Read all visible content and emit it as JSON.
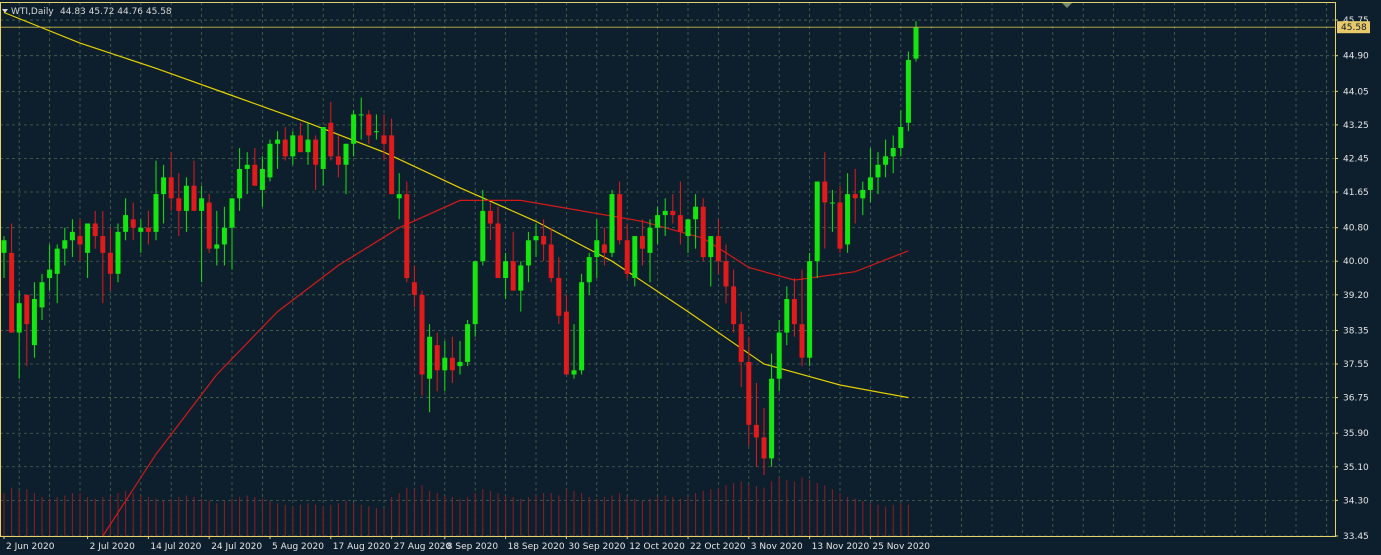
{
  "header": {
    "symbol": "WTI,Daily",
    "ohlc": "44.83 45.72 44.76 45.58"
  },
  "current_price_label": "45.58",
  "colors": {
    "background": "#0d1e2d",
    "frame": "#e8d36a",
    "grid": "#4a6650",
    "bull": "#14e60f",
    "bear": "#e11b1b",
    "volume": "#8d1f26",
    "slow_ma": "#e4d000",
    "fast_ma": "#d21a1a",
    "price_line": "#c9b84a",
    "price_tag": "#e7c96a"
  },
  "chart_data": {
    "type": "candlestick",
    "symbol": "WTI",
    "timeframe": "Daily",
    "ylim": [
      33.45,
      46.18
    ],
    "y_ticks": [
      "45.75",
      "44.90",
      "44.05",
      "43.25",
      "42.45",
      "41.65",
      "40.80",
      "40.00",
      "39.20",
      "38.35",
      "37.55",
      "36.75",
      "35.90",
      "35.10",
      "34.30",
      "33.45"
    ],
    "x_tick_labels": [
      {
        "label": "2 Jun 2020",
        "index": 0
      },
      {
        "label": "2 Jul 2020",
        "index": 11
      },
      {
        "label": "14 Jul 2020",
        "index": 19
      },
      {
        "label": "24 Jul 2020",
        "index": 27
      },
      {
        "label": "5 Aug 2020",
        "index": 35
      },
      {
        "label": "17 Aug 2020",
        "index": 43
      },
      {
        "label": "27 Aug 2020",
        "index": 51
      },
      {
        "label": "8 Sep 2020",
        "index": 58
      },
      {
        "label": "18 Sep 2020",
        "index": 66
      },
      {
        "label": "30 Sep 2020",
        "index": 74
      },
      {
        "label": "12 Oct 2020",
        "index": 82
      },
      {
        "label": "22 Oct 2020",
        "index": 90
      },
      {
        "label": "3 Nov 2020",
        "index": 98
      },
      {
        "label": "13 Nov 2020",
        "index": 106
      },
      {
        "label": "25 Nov 2020",
        "index": 114
      }
    ],
    "first_candle_index": 0,
    "candles": [
      [
        40.2,
        40.6,
        39.6,
        40.5
      ],
      [
        40.2,
        40.9,
        38.3,
        38.3
      ],
      [
        38.3,
        39.3,
        37.2,
        39.0
      ],
      [
        39.2,
        39.2,
        37.5,
        38.5
      ],
      [
        38.0,
        39.5,
        37.7,
        39.1
      ],
      [
        38.9,
        39.7,
        38.6,
        39.5
      ],
      [
        39.6,
        40.4,
        39.3,
        39.8
      ],
      [
        39.7,
        40.4,
        39.0,
        40.3
      ],
      [
        40.3,
        40.8,
        39.9,
        40.5
      ],
      [
        40.5,
        41.0,
        40.1,
        40.7
      ],
      [
        40.6,
        41.0,
        40.0,
        40.4
      ],
      [
        40.2,
        40.9,
        39.6,
        40.9
      ],
      [
        40.9,
        41.2,
        40.3,
        40.6
      ],
      [
        40.6,
        41.2,
        39.0,
        40.2
      ],
      [
        40.2,
        40.8,
        39.3,
        39.7
      ],
      [
        39.7,
        40.9,
        39.5,
        40.7
      ],
      [
        40.7,
        41.5,
        40.5,
        41.1
      ],
      [
        41.0,
        41.4,
        40.5,
        40.8
      ],
      [
        40.7,
        41.0,
        40.2,
        40.8
      ],
      [
        40.8,
        41.2,
        40.4,
        40.7
      ],
      [
        40.7,
        42.4,
        40.5,
        41.6
      ],
      [
        41.6,
        42.3,
        40.9,
        42.0
      ],
      [
        42.0,
        42.6,
        41.2,
        41.5
      ],
      [
        41.5,
        42.1,
        40.6,
        41.2
      ],
      [
        41.2,
        42.0,
        40.7,
        41.8
      ],
      [
        41.8,
        42.4,
        41.3,
        41.2
      ],
      [
        41.2,
        41.8,
        39.5,
        41.5
      ],
      [
        41.4,
        41.6,
        40.2,
        40.3
      ],
      [
        40.3,
        41.2,
        39.9,
        40.4
      ],
      [
        40.4,
        41.3,
        39.9,
        40.8
      ],
      [
        40.8,
        41.5,
        39.8,
        41.5
      ],
      [
        41.5,
        42.7,
        41.2,
        42.2
      ],
      [
        42.2,
        42.6,
        41.6,
        42.3
      ],
      [
        42.3,
        42.7,
        41.8,
        41.8
      ],
      [
        41.7,
        42.5,
        41.3,
        42.2
      ],
      [
        42.0,
        42.9,
        41.9,
        42.8
      ],
      [
        42.8,
        43.1,
        42.2,
        42.9
      ],
      [
        42.9,
        43.2,
        42.4,
        42.5
      ],
      [
        42.5,
        43.1,
        42.3,
        43.0
      ],
      [
        43.0,
        43.3,
        42.6,
        42.6
      ],
      [
        42.6,
        43.3,
        42.3,
        42.9
      ],
      [
        42.9,
        43.0,
        41.7,
        42.3
      ],
      [
        42.2,
        43.2,
        41.8,
        43.2
      ],
      [
        43.3,
        43.8,
        42.4,
        42.5
      ],
      [
        42.5,
        43.0,
        42.0,
        42.3
      ],
      [
        42.3,
        42.8,
        41.6,
        42.8
      ],
      [
        42.8,
        43.6,
        42.5,
        43.5
      ],
      [
        43.5,
        43.9,
        42.9,
        43.5
      ],
      [
        43.5,
        43.6,
        42.8,
        43.0
      ],
      [
        43.1,
        43.5,
        42.9,
        43.1
      ],
      [
        43.0,
        43.5,
        42.4,
        42.8
      ],
      [
        43.0,
        43.4,
        41.6,
        41.6
      ],
      [
        41.5,
        42.1,
        41.0,
        41.6
      ],
      [
        41.6,
        41.9,
        39.5,
        39.6
      ],
      [
        39.5,
        39.9,
        38.9,
        39.2
      ],
      [
        39.2,
        39.3,
        36.8,
        37.3
      ],
      [
        37.2,
        38.5,
        36.4,
        38.2
      ],
      [
        38.0,
        38.3,
        36.9,
        37.4
      ],
      [
        37.4,
        38.1,
        36.9,
        37.7
      ],
      [
        37.7,
        38.2,
        37.1,
        37.4
      ],
      [
        37.5,
        38.1,
        37.3,
        37.6
      ],
      [
        37.6,
        38.6,
        37.5,
        38.5
      ],
      [
        38.5,
        40.0,
        38.2,
        40.0
      ],
      [
        40.0,
        41.7,
        39.9,
        41.2
      ],
      [
        41.2,
        41.4,
        40.5,
        40.9
      ],
      [
        40.9,
        41.3,
        39.6,
        39.6
      ],
      [
        39.6,
        40.2,
        39.1,
        40.0
      ],
      [
        40.0,
        40.7,
        39.3,
        39.3
      ],
      [
        39.3,
        40.0,
        38.8,
        39.9
      ],
      [
        39.9,
        40.7,
        39.5,
        40.5
      ],
      [
        40.5,
        40.9,
        40.1,
        40.6
      ],
      [
        40.6,
        41.0,
        40.0,
        40.4
      ],
      [
        40.4,
        40.8,
        39.5,
        39.6
      ],
      [
        39.6,
        40.1,
        38.5,
        38.7
      ],
      [
        38.8,
        39.2,
        37.3,
        37.3
      ],
      [
        37.3,
        38.5,
        37.2,
        37.4
      ],
      [
        37.4,
        39.7,
        37.3,
        39.5
      ],
      [
        39.5,
        40.2,
        39.2,
        40.1
      ],
      [
        40.1,
        41.0,
        39.6,
        40.5
      ],
      [
        40.4,
        40.8,
        39.9,
        40.2
      ],
      [
        40.2,
        41.7,
        40.1,
        41.6
      ],
      [
        41.6,
        41.9,
        40.4,
        40.5
      ],
      [
        40.5,
        40.9,
        39.6,
        39.7
      ],
      [
        39.6,
        40.6,
        39.4,
        40.6
      ],
      [
        40.6,
        41.0,
        39.9,
        40.3
      ],
      [
        40.2,
        41.0,
        39.5,
        40.8
      ],
      [
        40.8,
        41.3,
        40.4,
        41.1
      ],
      [
        41.1,
        41.5,
        40.6,
        41.2
      ],
      [
        41.2,
        41.6,
        40.9,
        41.1
      ],
      [
        41.1,
        41.9,
        40.4,
        40.7
      ],
      [
        40.6,
        41.0,
        40.2,
        41.0
      ],
      [
        41.0,
        41.6,
        40.3,
        41.3
      ],
      [
        41.3,
        41.5,
        40.0,
        40.1
      ],
      [
        40.1,
        40.6,
        39.4,
        40.6
      ],
      [
        40.6,
        41.0,
        39.7,
        40.0
      ],
      [
        40.0,
        40.4,
        39.0,
        39.4
      ],
      [
        39.4,
        39.8,
        38.3,
        38.5
      ],
      [
        38.5,
        38.8,
        37.0,
        37.6
      ],
      [
        37.6,
        38.2,
        35.6,
        36.1
      ],
      [
        36.1,
        37.1,
        35.1,
        35.8
      ],
      [
        35.8,
        36.5,
        34.9,
        35.3
      ],
      [
        35.3,
        37.8,
        35.1,
        37.2
      ],
      [
        37.2,
        38.6,
        36.9,
        38.3
      ],
      [
        38.3,
        39.4,
        38.0,
        39.1
      ],
      [
        39.1,
        39.6,
        38.2,
        38.5
      ],
      [
        38.5,
        39.8,
        37.5,
        37.7
      ],
      [
        37.7,
        40.2,
        37.5,
        40.0
      ],
      [
        40.0,
        41.9,
        39.6,
        41.9
      ],
      [
        41.9,
        42.6,
        40.3,
        41.4
      ],
      [
        41.4,
        41.7,
        40.7,
        41.4
      ],
      [
        41.4,
        41.8,
        40.2,
        40.3
      ],
      [
        40.4,
        42.1,
        40.2,
        41.6
      ],
      [
        41.6,
        42.2,
        40.9,
        41.5
      ],
      [
        41.5,
        41.9,
        41.1,
        41.7
      ],
      [
        41.7,
        42.7,
        41.4,
        42.0
      ],
      [
        42.0,
        42.6,
        41.6,
        42.3
      ],
      [
        42.3,
        42.9,
        42.0,
        42.5
      ],
      [
        42.5,
        43.0,
        42.1,
        42.7
      ],
      [
        42.7,
        43.6,
        42.5,
        43.2
      ],
      [
        43.3,
        45.0,
        43.1,
        44.8
      ],
      [
        44.83,
        45.72,
        44.76,
        45.58
      ]
    ],
    "slow_ma": [
      {
        "i": 0,
        "v": 45.93
      },
      {
        "i": 10,
        "v": 45.2
      },
      {
        "i": 20,
        "v": 44.6
      },
      {
        "i": 30,
        "v": 43.95
      },
      {
        "i": 40,
        "v": 43.3
      },
      {
        "i": 50,
        "v": 42.6
      },
      {
        "i": 60,
        "v": 41.75
      },
      {
        "i": 70,
        "v": 40.95
      },
      {
        "i": 80,
        "v": 40.0
      },
      {
        "i": 90,
        "v": 38.8
      },
      {
        "i": 100,
        "v": 37.55
      },
      {
        "i": 110,
        "v": 37.05
      },
      {
        "i": 119,
        "v": 36.75
      }
    ],
    "fast_ma": [
      {
        "i": 13,
        "v": 33.45
      },
      {
        "i": 20,
        "v": 35.4
      },
      {
        "i": 28,
        "v": 37.3
      },
      {
        "i": 36,
        "v": 38.8
      },
      {
        "i": 44,
        "v": 39.9
      },
      {
        "i": 52,
        "v": 40.8
      },
      {
        "i": 60,
        "v": 41.45
      },
      {
        "i": 68,
        "v": 41.45
      },
      {
        "i": 76,
        "v": 41.2
      },
      {
        "i": 84,
        "v": 40.95
      },
      {
        "i": 92,
        "v": 40.55
      },
      {
        "i": 98,
        "v": 39.85
      },
      {
        "i": 104,
        "v": 39.55
      },
      {
        "i": 112,
        "v": 39.75
      },
      {
        "i": 119,
        "v": 40.25
      }
    ],
    "volume_relative": [
      0.55,
      0.62,
      0.58,
      0.6,
      0.55,
      0.5,
      0.48,
      0.5,
      0.52,
      0.55,
      0.55,
      0.5,
      0.48,
      0.5,
      0.52,
      0.55,
      0.58,
      0.55,
      0.52,
      0.5,
      0.48,
      0.45,
      0.48,
      0.5,
      0.52,
      0.5,
      0.48,
      0.45,
      0.42,
      0.45,
      0.48,
      0.5,
      0.52,
      0.5,
      0.48,
      0.45,
      0.42,
      0.4,
      0.38,
      0.4,
      0.42,
      0.4,
      0.38,
      0.4,
      0.42,
      0.45,
      0.42,
      0.4,
      0.38,
      0.36,
      0.35,
      0.5,
      0.55,
      0.62,
      0.6,
      0.65,
      0.58,
      0.55,
      0.52,
      0.5,
      0.48,
      0.5,
      0.55,
      0.6,
      0.58,
      0.55,
      0.52,
      0.5,
      0.48,
      0.5,
      0.52,
      0.55,
      0.55,
      0.52,
      0.6,
      0.58,
      0.55,
      0.5,
      0.48,
      0.5,
      0.52,
      0.55,
      0.5,
      0.48,
      0.45,
      0.48,
      0.5,
      0.52,
      0.5,
      0.48,
      0.5,
      0.55,
      0.58,
      0.6,
      0.62,
      0.65,
      0.68,
      0.7,
      0.66,
      0.64,
      0.62,
      0.7,
      0.75,
      0.72,
      0.7,
      0.75,
      0.72,
      0.68,
      0.65,
      0.6,
      0.55,
      0.5,
      0.48,
      0.45,
      0.42,
      0.4,
      0.38,
      0.4,
      0.42,
      0.4
    ]
  }
}
